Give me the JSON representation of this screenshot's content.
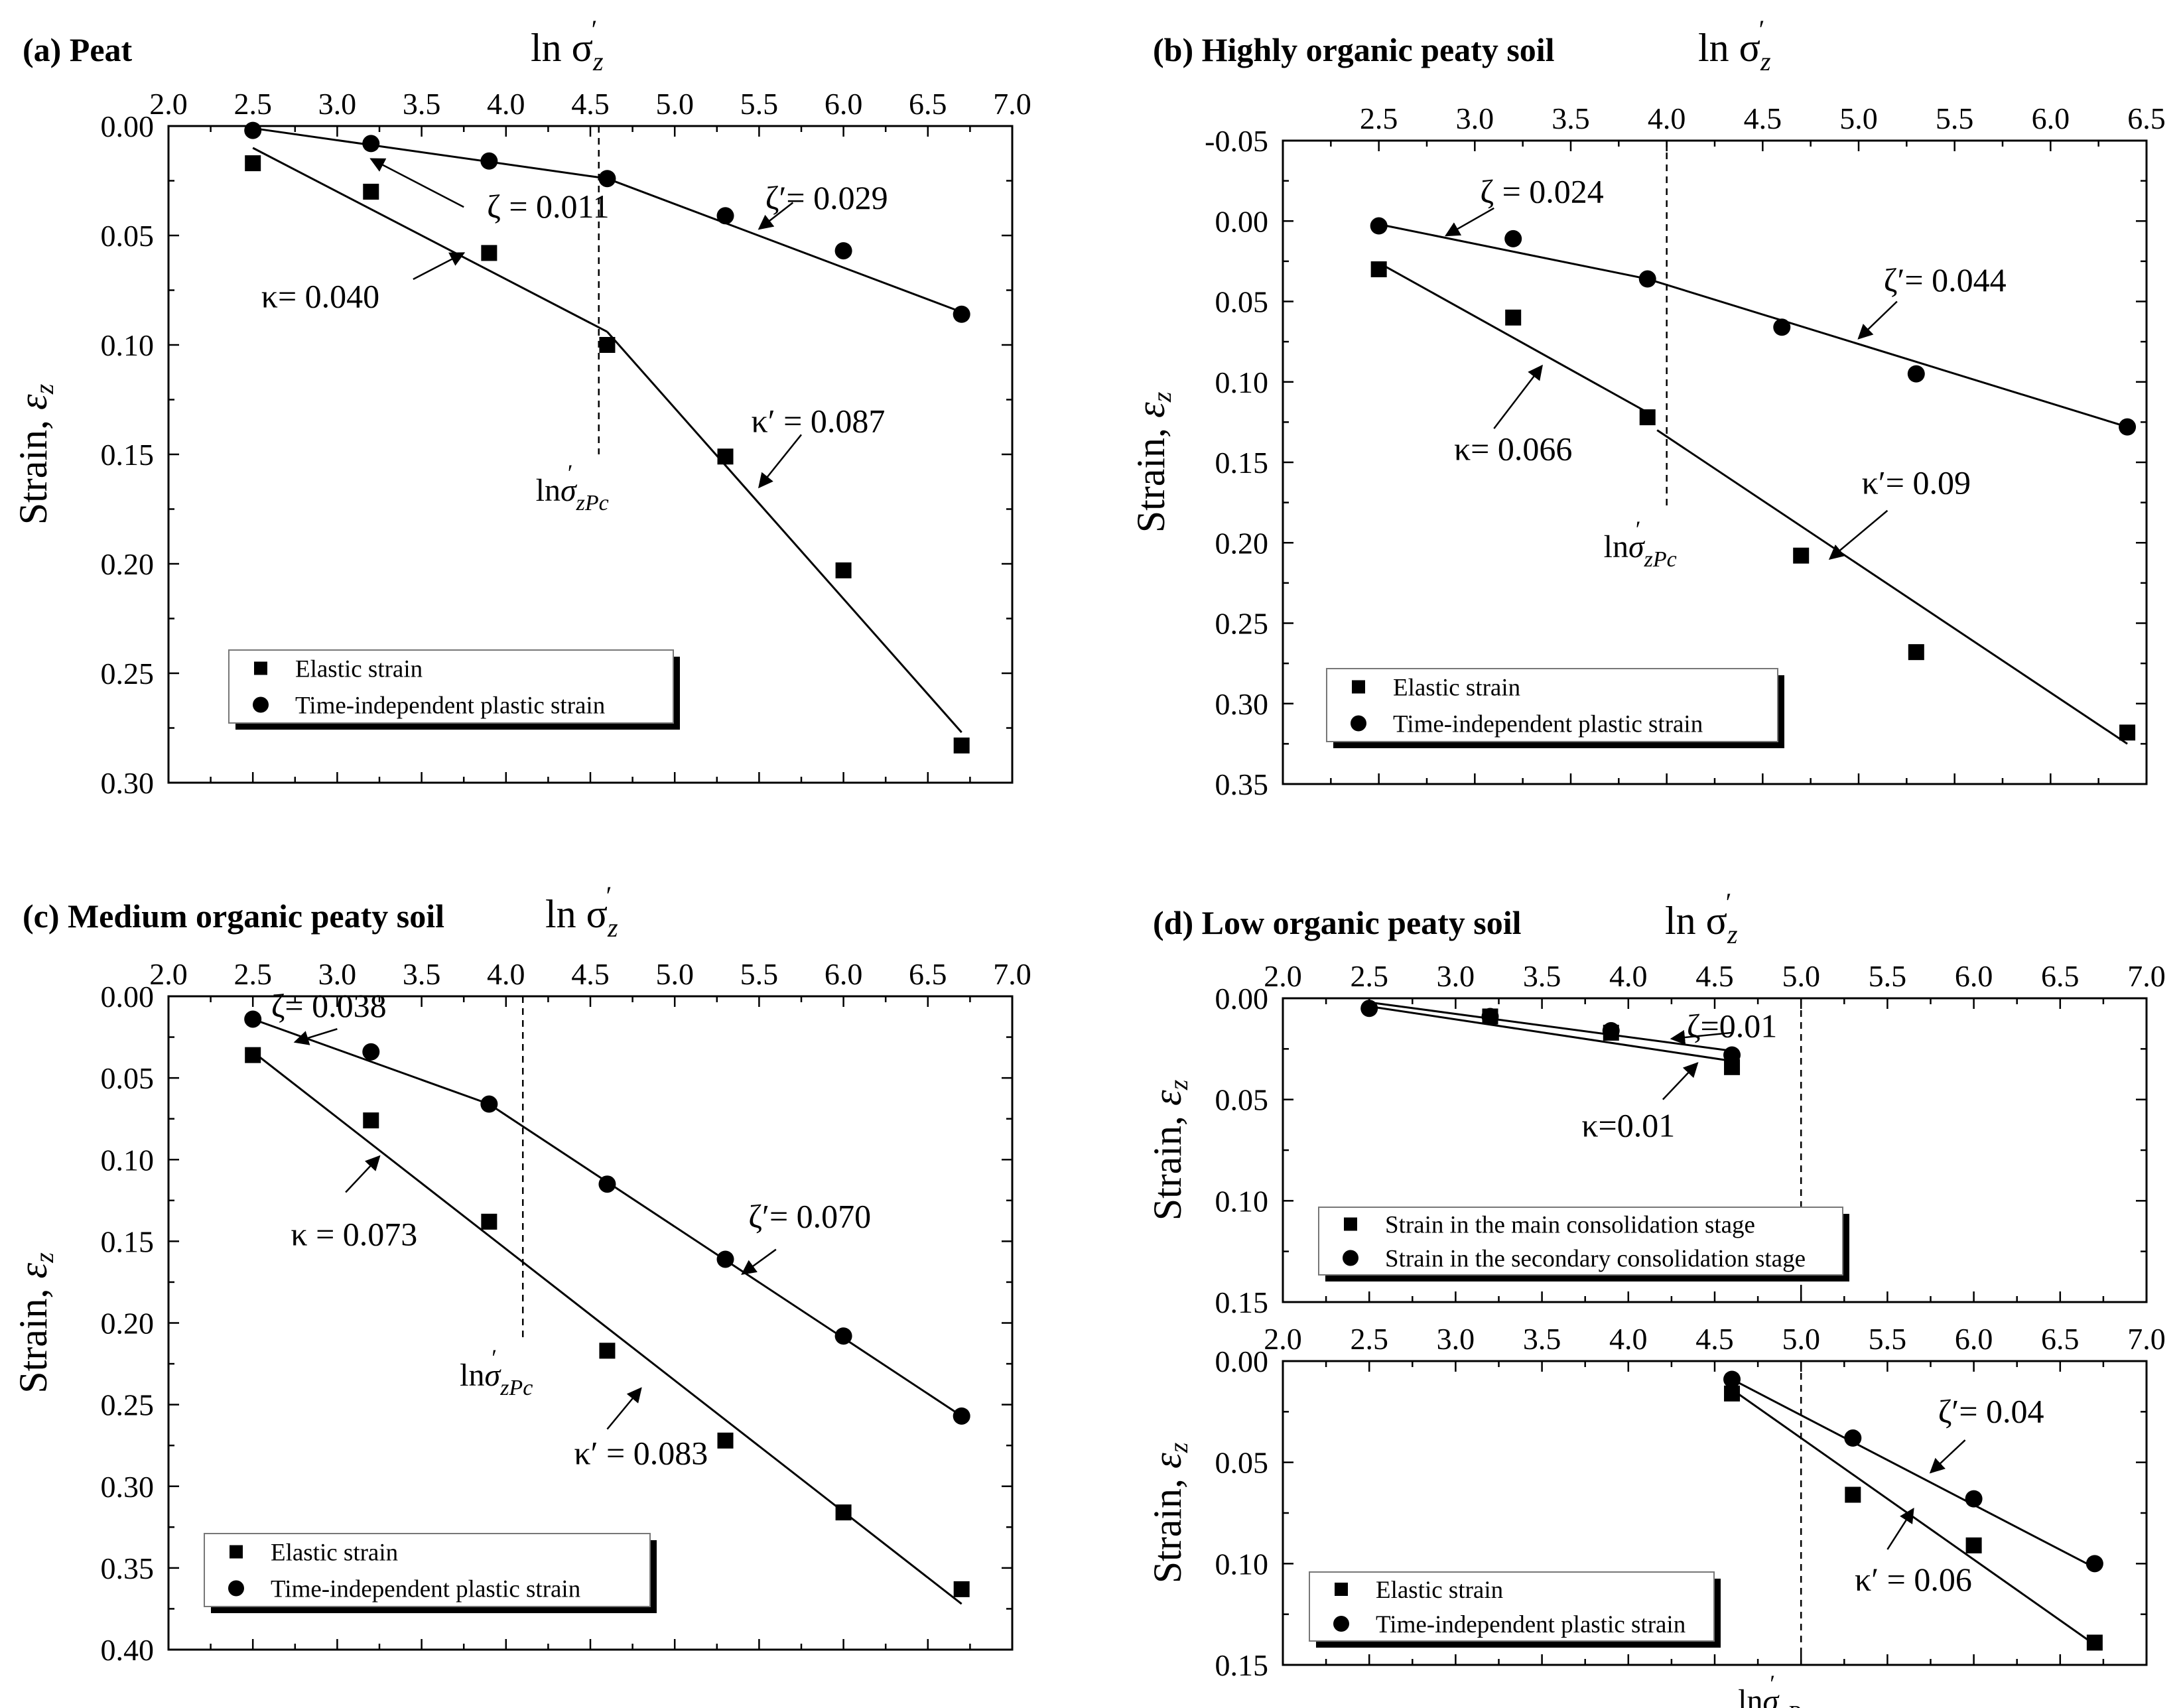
{
  "colors": {
    "ink": "#000000",
    "background": "#ffffff",
    "legend_shadow": "#000000"
  },
  "chart_data": [
    {
      "id": "a",
      "type": "scatter",
      "title": "(a) Peat",
      "xlabel": "ln σz′",
      "ylabel": "Strain, εz",
      "xlim": [
        2.0,
        7.0
      ],
      "ylim": [
        0.0,
        0.3
      ],
      "y_inverted": true,
      "xticks": [
        "2.0",
        "2.5",
        "3.0",
        "3.5",
        "4.0",
        "4.5",
        "5.0",
        "5.5",
        "6.0",
        "6.5",
        "7.0"
      ],
      "yticks": [
        "0.00",
        "0.05",
        "0.10",
        "0.15",
        "0.20",
        "0.25",
        "0.30"
      ],
      "grid": false,
      "legend_position": "bottom-left",
      "series": [
        {
          "name": "Elastic strain",
          "marker": "square",
          "x": [
            2.5,
            3.2,
            3.9,
            4.6,
            5.3,
            6.0,
            6.7
          ],
          "y": [
            0.017,
            0.03,
            0.058,
            0.1,
            0.151,
            0.203,
            0.283
          ]
        },
        {
          "name": "Time-independent plastic strain",
          "marker": "circle",
          "x": [
            2.5,
            3.2,
            3.9,
            4.6,
            5.3,
            6.0,
            6.7
          ],
          "y": [
            0.002,
            0.008,
            0.016,
            0.024,
            0.041,
            0.057,
            0.086
          ]
        }
      ],
      "fit_lines": [
        {
          "x": [
            2.5,
            4.6
          ],
          "y": [
            0.01,
            0.094
          ]
        },
        {
          "x": [
            4.6,
            6.7
          ],
          "y": [
            0.094,
            0.277
          ]
        },
        {
          "x": [
            2.5,
            4.6
          ],
          "y": [
            0.001,
            0.024
          ]
        },
        {
          "x": [
            4.6,
            6.7
          ],
          "y": [
            0.024,
            0.085
          ]
        }
      ],
      "reference_line": {
        "x": 4.55,
        "y_range": [
          0.0,
          0.15
        ],
        "label": "lnσzPc′"
      },
      "annotations": [
        {
          "text": "ζ = 0.011",
          "anchor_x": 4.25,
          "anchor_y": 0.037,
          "arrow_from": [
            3.75,
            0.037
          ],
          "arrow_to": [
            3.2,
            0.015
          ]
        },
        {
          "text": "ζ′= 0.029",
          "anchor_x": 5.9,
          "anchor_y": 0.033,
          "arrow_from": [
            5.7,
            0.035
          ],
          "arrow_to": [
            5.5,
            0.047
          ]
        },
        {
          "text": "κ= 0.040",
          "anchor_x": 2.9,
          "anchor_y": 0.078,
          "arrow_from": [
            3.45,
            0.07
          ],
          "arrow_to": [
            3.75,
            0.058
          ]
        },
        {
          "text": "κ′ = 0.087",
          "anchor_x": 5.85,
          "anchor_y": 0.135,
          "arrow_from": [
            5.75,
            0.141
          ],
          "arrow_to": [
            5.5,
            0.165
          ]
        }
      ]
    },
    {
      "id": "b",
      "type": "scatter",
      "title": "(b) Highly organic peaty soil",
      "xlabel": "ln σz′",
      "ylabel": "Strain, εz",
      "xlim": [
        2.0,
        6.5
      ],
      "ylim": [
        -0.05,
        0.35
      ],
      "y_inverted": true,
      "xticks": [
        "2.5",
        "3.0",
        "3.5",
        "4.0",
        "4.5",
        "5.0",
        "5.5",
        "6.0",
        "6.5"
      ],
      "yticks": [
        "-0.05",
        "0.00",
        "0.05",
        "0.10",
        "0.15",
        "0.20",
        "0.25",
        "0.30",
        "0.35"
      ],
      "grid": false,
      "legend_position": "bottom-left",
      "series": [
        {
          "name": "Elastic strain",
          "marker": "square",
          "x": [
            2.5,
            3.2,
            3.9,
            4.7,
            5.3,
            6.4
          ],
          "y": [
            0.03,
            0.06,
            0.122,
            0.208,
            0.268,
            0.318
          ]
        },
        {
          "name": "Time-independent plastic strain",
          "marker": "circle",
          "x": [
            2.5,
            3.2,
            3.9,
            4.6,
            5.3,
            6.4
          ],
          "y": [
            0.003,
            0.011,
            0.036,
            0.066,
            0.095,
            0.128
          ]
        }
      ],
      "fit_lines": [
        {
          "x": [
            2.5,
            3.9
          ],
          "y": [
            0.026,
            0.119
          ]
        },
        {
          "x": [
            3.95,
            6.4
          ],
          "y": [
            0.13,
            0.325
          ]
        },
        {
          "x": [
            2.5,
            3.9
          ],
          "y": [
            0.002,
            0.036
          ]
        },
        {
          "x": [
            3.9,
            6.4
          ],
          "y": [
            0.036,
            0.128
          ]
        }
      ],
      "reference_line": {
        "x": 4.0,
        "y_range": [
          -0.05,
          0.18
        ],
        "label": "lnσzPc′"
      },
      "annotations": [
        {
          "text": "ζ = 0.024",
          "anchor_x": 3.35,
          "anchor_y": -0.018,
          "arrow_from": [
            3.1,
            -0.008
          ],
          "arrow_to": [
            2.85,
            0.009
          ]
        },
        {
          "text": "ζ′= 0.044",
          "anchor_x": 5.45,
          "anchor_y": 0.037,
          "arrow_from": [
            5.2,
            0.05
          ],
          "arrow_to": [
            5.0,
            0.073
          ]
        },
        {
          "text": "κ= 0.066",
          "anchor_x": 3.2,
          "anchor_y": 0.142,
          "arrow_from": [
            3.1,
            0.129
          ],
          "arrow_to": [
            3.35,
            0.09
          ]
        },
        {
          "text": "κ′= 0.09",
          "anchor_x": 5.3,
          "anchor_y": 0.163,
          "arrow_from": [
            5.15,
            0.18
          ],
          "arrow_to": [
            4.85,
            0.21
          ]
        }
      ]
    },
    {
      "id": "c",
      "type": "scatter",
      "title": "(c) Medium organic peaty soil",
      "xlabel": "ln σz′",
      "ylabel": "Strain, εz",
      "xlim": [
        2.0,
        7.0
      ],
      "ylim": [
        0.0,
        0.4
      ],
      "y_inverted": true,
      "xticks": [
        "2.0",
        "2.5",
        "3.0",
        "3.5",
        "4.0",
        "4.5",
        "5.0",
        "5.5",
        "6.0",
        "6.5",
        "7.0"
      ],
      "yticks": [
        "0.00",
        "0.05",
        "0.10",
        "0.15",
        "0.20",
        "0.25",
        "0.30",
        "0.35",
        "0.40"
      ],
      "grid": false,
      "legend_position": "bottom-left",
      "series": [
        {
          "name": "Elastic strain",
          "marker": "square",
          "x": [
            2.5,
            3.2,
            3.9,
            4.6,
            5.3,
            6.0,
            6.7
          ],
          "y": [
            0.036,
            0.076,
            0.138,
            0.217,
            0.272,
            0.316,
            0.363
          ]
        },
        {
          "name": "Time-independent plastic strain",
          "marker": "circle",
          "x": [
            2.5,
            3.2,
            3.9,
            4.6,
            5.3,
            6.0,
            6.7
          ],
          "y": [
            0.014,
            0.034,
            0.066,
            0.115,
            0.161,
            0.208,
            0.257
          ]
        }
      ],
      "fit_lines": [
        {
          "x": [
            2.5,
            6.7
          ],
          "y": [
            0.034,
            0.372
          ]
        },
        {
          "x": [
            2.5,
            3.9
          ],
          "y": [
            0.014,
            0.066
          ]
        },
        {
          "x": [
            3.9,
            6.7
          ],
          "y": [
            0.066,
            0.257
          ]
        }
      ],
      "reference_line": {
        "x": 4.1,
        "y_range": [
          0.0,
          0.21
        ],
        "label": "lnσzPc′"
      },
      "annotations": [
        {
          "text": "ζ= 0.038",
          "anchor_x": 2.95,
          "anchor_y": 0.006,
          "arrow_from": [
            3.0,
            0.02
          ],
          "arrow_to": [
            2.75,
            0.028
          ]
        },
        {
          "text": "ζ′= 0.070",
          "anchor_x": 5.8,
          "anchor_y": 0.135,
          "arrow_from": [
            5.6,
            0.155
          ],
          "arrow_to": [
            5.4,
            0.17
          ]
        },
        {
          "text": "κ = 0.073",
          "anchor_x": 3.1,
          "anchor_y": 0.146,
          "arrow_from": [
            3.05,
            0.12
          ],
          "arrow_to": [
            3.25,
            0.098
          ]
        },
        {
          "text": "κ′ = 0.083",
          "anchor_x": 4.8,
          "anchor_y": 0.28,
          "arrow_from": [
            4.6,
            0.265
          ],
          "arrow_to": [
            4.8,
            0.24
          ]
        }
      ]
    },
    {
      "id": "d_upper",
      "type": "scatter",
      "title": "(d) Low organic peaty soil",
      "xlabel": "ln σz′",
      "ylabel": "Strain, εz",
      "xlim": [
        2.0,
        7.0
      ],
      "ylim": [
        0.0,
        0.15
      ],
      "y_inverted": true,
      "xticks": [
        "2.0",
        "2.5",
        "3.0",
        "3.5",
        "4.0",
        "4.5",
        "5.0",
        "5.5",
        "6.0",
        "6.5",
        "7.0"
      ],
      "yticks": [
        "0.00",
        "0.05",
        "0.10",
        "0.15"
      ],
      "grid": false,
      "legend_position": "bottom-left",
      "series": [
        {
          "name": "Strain in the main consolidation stage",
          "marker": "square",
          "x": [
            3.2,
            3.9,
            4.6
          ],
          "y": [
            0.009,
            0.017,
            0.034
          ]
        },
        {
          "name": "Strain in the secondary consolidation stage",
          "marker": "circle",
          "x": [
            2.5,
            3.2,
            3.9,
            4.6
          ],
          "y": [
            0.005,
            0.009,
            0.016,
            0.028
          ]
        }
      ],
      "fit_lines": [
        {
          "x": [
            2.5,
            4.6
          ],
          "y": [
            0.002,
            0.026
          ]
        },
        {
          "x": [
            2.5,
            4.6
          ],
          "y": [
            0.004,
            0.031
          ]
        }
      ],
      "reference_line": {
        "x": 5.0,
        "y_range": [
          0.0,
          0.15
        ],
        "label": ""
      },
      "annotations": [
        {
          "text": "ζ=0.01",
          "anchor_x": 4.6,
          "anchor_y": 0.014,
          "arrow_from": [
            4.6,
            0.017
          ],
          "arrow_to": [
            4.25,
            0.02
          ]
        },
        {
          "text": "κ=0.01",
          "anchor_x": 4.0,
          "anchor_y": 0.063,
          "arrow_from": [
            4.2,
            0.05
          ],
          "arrow_to": [
            4.4,
            0.032
          ]
        }
      ]
    },
    {
      "id": "d_lower",
      "type": "scatter",
      "title": "",
      "xlabel": "",
      "ylabel": "Strain, εz",
      "xlim": [
        2.0,
        7.0
      ],
      "ylim": [
        0.0,
        0.15
      ],
      "y_inverted": true,
      "xticks": [
        "2.0",
        "2.5",
        "3.0",
        "3.5",
        "4.0",
        "4.5",
        "5.0",
        "5.5",
        "6.0",
        "6.5",
        "7.0"
      ],
      "yticks": [
        "0.00",
        "0.05",
        "0.10",
        "0.15"
      ],
      "grid": false,
      "legend_position": "bottom-left",
      "series": [
        {
          "name": "Elastic strain",
          "marker": "square",
          "x": [
            4.6,
            5.3,
            6.0,
            6.7
          ],
          "y": [
            0.016,
            0.066,
            0.091,
            0.139
          ]
        },
        {
          "name": "Time-independent plastic strain",
          "marker": "circle",
          "x": [
            4.6,
            5.3,
            6.0,
            6.7
          ],
          "y": [
            0.009,
            0.038,
            0.068,
            0.1
          ]
        }
      ],
      "fit_lines": [
        {
          "x": [
            4.6,
            6.7
          ],
          "y": [
            0.014,
            0.14
          ]
        },
        {
          "x": [
            4.6,
            6.7
          ],
          "y": [
            0.009,
            0.102
          ]
        }
      ],
      "reference_line": {
        "x": 5.0,
        "y_range": [
          0.0,
          0.15
        ],
        "label": "lnσzPc′"
      },
      "annotations": [
        {
          "text": "ζ′= 0.04",
          "anchor_x": 6.1,
          "anchor_y": 0.025,
          "arrow_from": [
            5.95,
            0.039
          ],
          "arrow_to": [
            5.75,
            0.055
          ]
        },
        {
          "text": "κ′ = 0.06",
          "anchor_x": 5.65,
          "anchor_y": 0.108,
          "arrow_from": [
            5.5,
            0.093
          ],
          "arrow_to": [
            5.65,
            0.073
          ]
        }
      ]
    }
  ]
}
